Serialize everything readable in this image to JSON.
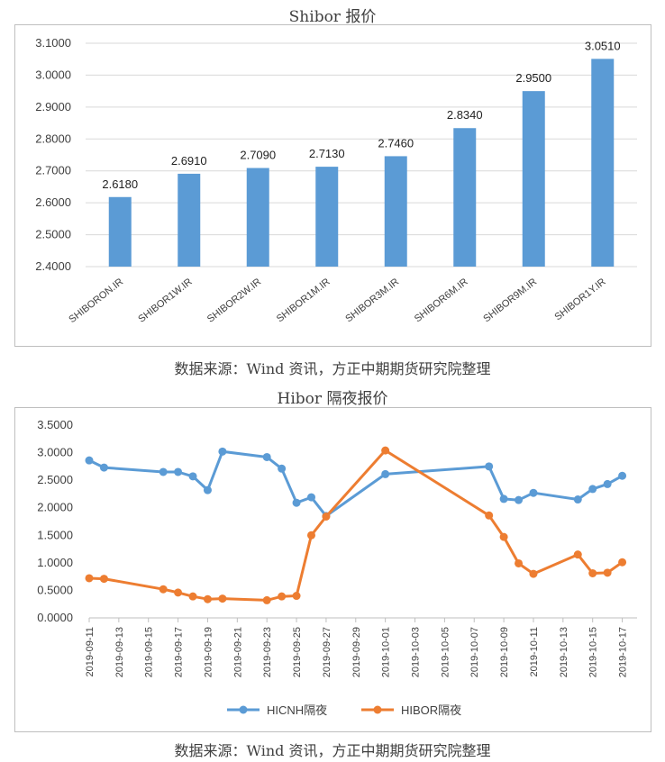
{
  "chart1_title": "Shibor 报价",
  "chart2_title": "Hibor 隔夜报价",
  "source_text": "数据来源：Wind 资讯，方正中期期货研究院整理",
  "chart_data": [
    {
      "type": "bar",
      "title": "Shibor 报价",
      "categories": [
        "SHIBORON.IR",
        "SHIBOR1W.IR",
        "SHIBOR2W.IR",
        "SHIBOR1M.IR",
        "SHIBOR3M.IR",
        "SHIBOR6M.IR",
        "SHIBOR9M.IR",
        "SHIBOR1Y.IR"
      ],
      "values": [
        2.618,
        2.691,
        2.709,
        2.713,
        2.746,
        2.834,
        2.95,
        3.051
      ],
      "value_labels": [
        "2.6180",
        "2.6910",
        "2.7090",
        "2.7130",
        "2.7460",
        "2.8340",
        "2.9500",
        "3.0510"
      ],
      "ylim": [
        2.4,
        3.1
      ],
      "yticks": [
        "2.4000",
        "2.5000",
        "2.6000",
        "2.7000",
        "2.8000",
        "2.9000",
        "3.0000",
        "3.1000"
      ],
      "grid": true,
      "color": "#5b9bd5"
    },
    {
      "type": "line",
      "title": "Hibor 隔夜报价",
      "ylim": [
        0,
        3.5
      ],
      "yticks": [
        "0.0000",
        "0.5000",
        "1.0000",
        "1.5000",
        "2.0000",
        "2.5000",
        "3.0000",
        "3.5000"
      ],
      "xlim": [
        "2019-09-11",
        "2019-10-18"
      ],
      "xticks": [
        "2019-09-11",
        "2019-09-13",
        "2019-09-15",
        "2019-09-17",
        "2019-09-19",
        "2019-09-21",
        "2019-09-23",
        "2019-09-25",
        "2019-09-27",
        "2019-09-29",
        "2019-10-01",
        "2019-10-03",
        "2019-10-05",
        "2019-10-07",
        "2019-10-09",
        "2019-10-11",
        "2019-10-13",
        "2019-10-15",
        "2019-10-17"
      ],
      "legend_position": "bottom",
      "series": [
        {
          "name": "HICNH隔夜",
          "color": "#5b9bd5",
          "points": [
            [
              "2019-09-11",
              2.86
            ],
            [
              "2019-09-12",
              2.73
            ],
            [
              "2019-09-16",
              2.65
            ],
            [
              "2019-09-17",
              2.65
            ],
            [
              "2019-09-18",
              2.57
            ],
            [
              "2019-09-19",
              2.32
            ],
            [
              "2019-09-20",
              3.02
            ],
            [
              "2019-09-23",
              2.92
            ],
            [
              "2019-09-24",
              2.71
            ],
            [
              "2019-09-25",
              2.09
            ],
            [
              "2019-09-26",
              2.19
            ],
            [
              "2019-09-27",
              1.85
            ],
            [
              "2019-10-01",
              2.61
            ],
            [
              "2019-10-08",
              2.75
            ],
            [
              "2019-10-09",
              2.16
            ],
            [
              "2019-10-10",
              2.14
            ],
            [
              "2019-10-11",
              2.27
            ],
            [
              "2019-10-14",
              2.15
            ],
            [
              "2019-10-15",
              2.34
            ],
            [
              "2019-10-16",
              2.43
            ],
            [
              "2019-10-17",
              2.58
            ]
          ]
        },
        {
          "name": "HIBOR隔夜",
          "color": "#ed7d31",
          "points": [
            [
              "2019-09-11",
              0.72
            ],
            [
              "2019-09-12",
              0.71
            ],
            [
              "2019-09-16",
              0.52
            ],
            [
              "2019-09-17",
              0.46
            ],
            [
              "2019-09-18",
              0.39
            ],
            [
              "2019-09-19",
              0.34
            ],
            [
              "2019-09-20",
              0.35
            ],
            [
              "2019-09-23",
              0.32
            ],
            [
              "2019-09-24",
              0.39
            ],
            [
              "2019-09-25",
              0.4
            ],
            [
              "2019-09-26",
              1.5
            ],
            [
              "2019-09-27",
              1.84
            ],
            [
              "2019-10-01",
              3.04
            ],
            [
              "2019-10-08",
              1.86
            ],
            [
              "2019-10-09",
              1.47
            ],
            [
              "2019-10-10",
              0.99
            ],
            [
              "2019-10-11",
              0.8
            ],
            [
              "2019-10-14",
              1.15
            ],
            [
              "2019-10-15",
              0.81
            ],
            [
              "2019-10-16",
              0.82
            ],
            [
              "2019-10-17",
              1.01
            ]
          ]
        }
      ]
    }
  ]
}
